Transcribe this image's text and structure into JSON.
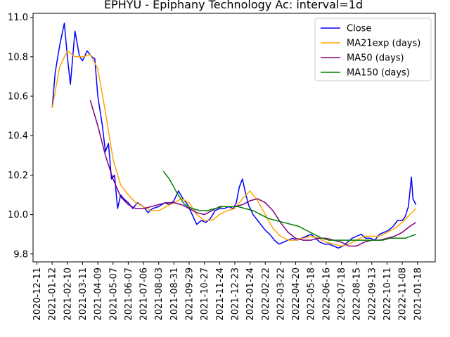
{
  "chart_data": {
    "type": "line",
    "title": "EPHYU - Epiphany Technology Ac: interval=1d",
    "xlabel": "",
    "ylabel": "",
    "ylim": [
      9.76,
      11.02
    ],
    "yticks": [
      "9.8",
      "10.0",
      "10.2",
      "10.4",
      "10.6",
      "10.8",
      "11.0"
    ],
    "xticks": [
      "2020-12-11",
      "2021-01-12",
      "2021-02-10",
      "2021-03-11",
      "2021-04-09",
      "2021-05-07",
      "2021-06-07",
      "2021-07-06",
      "2021-08-03",
      "2021-08-31",
      "2021-09-29",
      "2021-10-27",
      "2021-11-24",
      "2021-12-23",
      "2022-01-24",
      "2022-02-22",
      "2022-03-22",
      "2022-04-20",
      "2022-05-18",
      "2022-06-16",
      "2022-07-18",
      "2022-08-15",
      "2022-09-13",
      "2022-10-11",
      "2022-11-08",
      "2021-01-18"
    ],
    "grid": false,
    "legend_position": "top-right",
    "series": [
      {
        "name": "Close",
        "color": "#0000ff",
        "points": [
          [
            1,
            10.54
          ],
          [
            1.2,
            10.72
          ],
          [
            1.5,
            10.86
          ],
          [
            1.8,
            10.97
          ],
          [
            2.0,
            10.8
          ],
          [
            2.2,
            10.66
          ],
          [
            2.5,
            10.93
          ],
          [
            2.8,
            10.8
          ],
          [
            3.0,
            10.78
          ],
          [
            3.3,
            10.83
          ],
          [
            3.6,
            10.8
          ],
          [
            3.8,
            10.79
          ],
          [
            4.0,
            10.6
          ],
          [
            4.3,
            10.45
          ],
          [
            4.5,
            10.32
          ],
          [
            4.7,
            10.36
          ],
          [
            4.9,
            10.18
          ],
          [
            5.1,
            10.2
          ],
          [
            5.3,
            10.03
          ],
          [
            5.5,
            10.1
          ],
          [
            5.7,
            10.08
          ],
          [
            6.0,
            10.06
          ],
          [
            6.3,
            10.03
          ],
          [
            6.6,
            10.06
          ],
          [
            7.0,
            10.04
          ],
          [
            7.3,
            10.01
          ],
          [
            7.6,
            10.03
          ],
          [
            8.0,
            10.04
          ],
          [
            8.4,
            10.06
          ],
          [
            8.7,
            10.05
          ],
          [
            9.0,
            10.07
          ],
          [
            9.3,
            10.12
          ],
          [
            9.6,
            10.08
          ],
          [
            9.9,
            10.05
          ],
          [
            10.2,
            10.0
          ],
          [
            10.5,
            9.95
          ],
          [
            10.8,
            9.97
          ],
          [
            11.1,
            9.96
          ],
          [
            11.4,
            9.98
          ],
          [
            11.7,
            10.02
          ],
          [
            12.0,
            10.03
          ],
          [
            12.3,
            10.03
          ],
          [
            12.6,
            10.04
          ],
          [
            12.9,
            10.03
          ],
          [
            13.1,
            10.06
          ],
          [
            13.3,
            10.14
          ],
          [
            13.5,
            10.18
          ],
          [
            13.7,
            10.11
          ],
          [
            13.9,
            10.05
          ],
          [
            14.2,
            10.0
          ],
          [
            14.5,
            9.97
          ],
          [
            14.8,
            9.94
          ],
          [
            15.0,
            9.92
          ],
          [
            15.3,
            9.9
          ],
          [
            15.6,
            9.87
          ],
          [
            15.9,
            9.85
          ],
          [
            16.2,
            9.86
          ],
          [
            16.5,
            9.87
          ],
          [
            16.8,
            9.88
          ],
          [
            17.1,
            9.87
          ],
          [
            17.4,
            9.88
          ],
          [
            17.7,
            9.89
          ],
          [
            18.0,
            9.9
          ],
          [
            18.3,
            9.88
          ],
          [
            18.6,
            9.86
          ],
          [
            18.9,
            9.85
          ],
          [
            19.2,
            9.85
          ],
          [
            19.5,
            9.84
          ],
          [
            19.8,
            9.83
          ],
          [
            20.1,
            9.84
          ],
          [
            20.4,
            9.86
          ],
          [
            20.7,
            9.88
          ],
          [
            21.0,
            9.89
          ],
          [
            21.3,
            9.9
          ],
          [
            21.6,
            9.88
          ],
          [
            21.9,
            9.88
          ],
          [
            22.2,
            9.87
          ],
          [
            22.5,
            9.9
          ],
          [
            22.8,
            9.91
          ],
          [
            23.1,
            9.92
          ],
          [
            23.4,
            9.94
          ],
          [
            23.7,
            9.97
          ],
          [
            24.0,
            9.97
          ],
          [
            24.2,
            9.99
          ],
          [
            24.4,
            10.04
          ],
          [
            24.6,
            10.19
          ],
          [
            24.7,
            10.08
          ],
          [
            24.9,
            10.05
          ]
        ]
      },
      {
        "name": "MA21exp (days)",
        "color": "#ffa500",
        "points": [
          [
            1,
            10.54
          ],
          [
            1.5,
            10.75
          ],
          [
            2.0,
            10.83
          ],
          [
            2.5,
            10.8
          ],
          [
            3.0,
            10.8
          ],
          [
            3.5,
            10.81
          ],
          [
            4.0,
            10.74
          ],
          [
            4.5,
            10.52
          ],
          [
            5.0,
            10.28
          ],
          [
            5.5,
            10.15
          ],
          [
            6.0,
            10.1
          ],
          [
            6.5,
            10.06
          ],
          [
            7.0,
            10.04
          ],
          [
            7.5,
            10.02
          ],
          [
            8.0,
            10.02
          ],
          [
            8.5,
            10.04
          ],
          [
            9.0,
            10.06
          ],
          [
            9.5,
            10.08
          ],
          [
            10.0,
            10.06
          ],
          [
            10.5,
            10.0
          ],
          [
            11.0,
            9.97
          ],
          [
            11.5,
            9.97
          ],
          [
            12.0,
            10.0
          ],
          [
            12.5,
            10.02
          ],
          [
            13.0,
            10.03
          ],
          [
            13.5,
            10.08
          ],
          [
            14.0,
            10.12
          ],
          [
            14.5,
            10.07
          ],
          [
            15.0,
            10.0
          ],
          [
            15.5,
            9.93
          ],
          [
            16.0,
            9.89
          ],
          [
            16.5,
            9.87
          ],
          [
            17.0,
            9.87
          ],
          [
            17.5,
            9.88
          ],
          [
            18.0,
            9.89
          ],
          [
            18.5,
            9.88
          ],
          [
            19.0,
            9.86
          ],
          [
            19.5,
            9.85
          ],
          [
            20.0,
            9.84
          ],
          [
            20.5,
            9.85
          ],
          [
            21.0,
            9.87
          ],
          [
            21.5,
            9.89
          ],
          [
            22.0,
            9.89
          ],
          [
            22.5,
            9.89
          ],
          [
            23.0,
            9.91
          ],
          [
            23.5,
            9.93
          ],
          [
            24.0,
            9.96
          ],
          [
            24.5,
            10.0
          ],
          [
            24.9,
            10.03
          ]
        ]
      },
      {
        "name": "MA50 (days)",
        "color": "#800080",
        "points": [
          [
            3.5,
            10.58
          ],
          [
            4.0,
            10.45
          ],
          [
            4.5,
            10.3
          ],
          [
            5.0,
            10.18
          ],
          [
            5.5,
            10.09
          ],
          [
            6.0,
            10.05
          ],
          [
            6.5,
            10.03
          ],
          [
            7.0,
            10.03
          ],
          [
            7.5,
            10.04
          ],
          [
            8.0,
            10.05
          ],
          [
            8.5,
            10.06
          ],
          [
            9.0,
            10.06
          ],
          [
            9.5,
            10.05
          ],
          [
            10.0,
            10.03
          ],
          [
            10.5,
            10.01
          ],
          [
            11.0,
            10.0
          ],
          [
            11.5,
            10.02
          ],
          [
            12.0,
            10.04
          ],
          [
            12.5,
            10.04
          ],
          [
            13.0,
            10.04
          ],
          [
            13.5,
            10.05
          ],
          [
            14.0,
            10.07
          ],
          [
            14.5,
            10.08
          ],
          [
            15.0,
            10.06
          ],
          [
            15.5,
            10.02
          ],
          [
            16.0,
            9.96
          ],
          [
            16.5,
            9.91
          ],
          [
            17.0,
            9.88
          ],
          [
            17.5,
            9.87
          ],
          [
            18.0,
            9.87
          ],
          [
            18.5,
            9.88
          ],
          [
            19.0,
            9.88
          ],
          [
            19.5,
            9.87
          ],
          [
            20.0,
            9.86
          ],
          [
            20.5,
            9.84
          ],
          [
            21.0,
            9.84
          ],
          [
            21.5,
            9.86
          ],
          [
            22.0,
            9.87
          ],
          [
            22.5,
            9.87
          ],
          [
            23.0,
            9.88
          ],
          [
            23.5,
            9.89
          ],
          [
            24.0,
            9.91
          ],
          [
            24.5,
            9.94
          ],
          [
            24.9,
            9.96
          ]
        ]
      },
      {
        "name": "MA150 (days)",
        "color": "#008000",
        "points": [
          [
            8.3,
            10.22
          ],
          [
            8.7,
            10.18
          ],
          [
            9.2,
            10.11
          ],
          [
            9.7,
            10.05
          ],
          [
            10.2,
            10.03
          ],
          [
            10.7,
            10.02
          ],
          [
            11.2,
            10.02
          ],
          [
            11.7,
            10.03
          ],
          [
            12.2,
            10.04
          ],
          [
            12.7,
            10.04
          ],
          [
            13.2,
            10.04
          ],
          [
            13.7,
            10.03
          ],
          [
            14.2,
            10.02
          ],
          [
            14.7,
            10.0
          ],
          [
            15.2,
            9.98
          ],
          [
            15.7,
            9.97
          ],
          [
            16.2,
            9.96
          ],
          [
            16.7,
            9.95
          ],
          [
            17.2,
            9.94
          ],
          [
            17.7,
            9.92
          ],
          [
            18.2,
            9.9
          ],
          [
            18.7,
            9.88
          ],
          [
            19.2,
            9.87
          ],
          [
            19.7,
            9.87
          ],
          [
            20.2,
            9.87
          ],
          [
            20.7,
            9.87
          ],
          [
            21.2,
            9.87
          ],
          [
            21.7,
            9.87
          ],
          [
            22.2,
            9.87
          ],
          [
            22.7,
            9.87
          ],
          [
            23.2,
            9.88
          ],
          [
            23.7,
            9.88
          ],
          [
            24.2,
            9.88
          ],
          [
            24.9,
            9.9
          ]
        ]
      }
    ]
  }
}
